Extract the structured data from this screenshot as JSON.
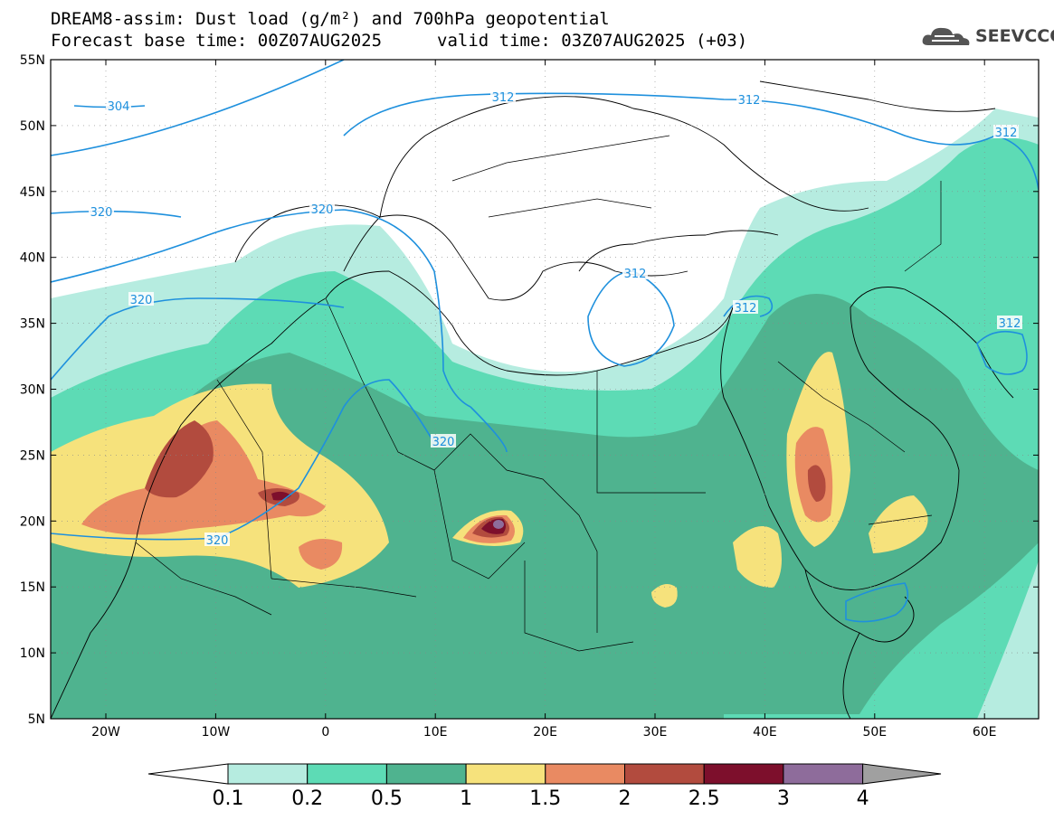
{
  "title": {
    "line1": "DREAM8-assim: Dust load (g/m²) and 700hPa geopotential",
    "line2_left": "Forecast base time: 00Z07AUG2025",
    "line2_right": "valid time: 03Z07AUG2025 (+03)"
  },
  "logo": {
    "text": "SEEVCCC",
    "icon": "cloud-icon"
  },
  "axes": {
    "lat_labels": [
      "55N",
      "50N",
      "45N",
      "40N",
      "35N",
      "30N",
      "25N",
      "20N",
      "15N",
      "10N",
      "5N"
    ],
    "lon_labels": [
      "20W",
      "10W",
      "0",
      "10E",
      "20E",
      "30E",
      "40E",
      "50E",
      "60E"
    ]
  },
  "contour_labels": [
    "304",
    "312",
    "312",
    "312",
    "312",
    "312",
    "312",
    "320",
    "320",
    "320",
    "320",
    "320"
  ],
  "colorbar": {
    "labels": [
      "0.1",
      "0.2",
      "0.5",
      "1",
      "1.5",
      "2",
      "2.5",
      "3",
      "4"
    ],
    "colors": [
      "#ffffff",
      "#b6ece0",
      "#5ddbb5",
      "#4fb38f",
      "#f6e27c",
      "#e98a62",
      "#b24b3e",
      "#7d0f2c",
      "#8e6c9b",
      "#a0a0a0"
    ]
  }
}
